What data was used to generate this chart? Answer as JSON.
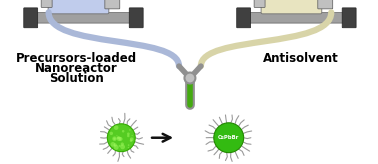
{
  "bg_color": "#ffffff",
  "left_label_lines": [
    "Precursors-loaded",
    "Nanoreactor",
    "Solution"
  ],
  "right_label": "Antisolvent",
  "label_fontsize": 8.5,
  "tube_left_color": "#aab8d8",
  "tube_right_color": "#d8d4a8",
  "syringe_body_left": "#c0ccec",
  "syringe_body_right": "#e8e4c0",
  "pump_body_color": "#c0c0c0",
  "pump_dark_color": "#404040",
  "pump_rail_color": "#a0a0a0",
  "ymixer_color": "#909090",
  "ymixer_tube_color": "#44aa10",
  "nanocrystal_before_color": "#55cc22",
  "nanocrystal_after_color": "#33bb11",
  "nanocrystal_label": "CsPbBr",
  "arrow_color": "#111111",
  "ligand_color": "#888888",
  "ligand_color2": "#aaaaaa"
}
